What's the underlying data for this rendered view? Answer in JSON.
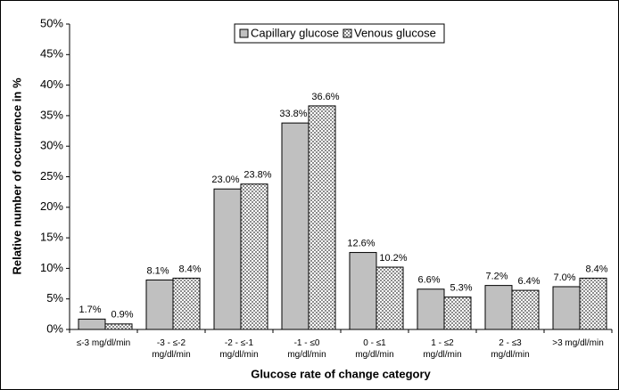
{
  "chart_data": {
    "type": "bar",
    "x_label": "Glucose rate of change category",
    "y_label": "Relative number of occurrence in %",
    "categories": [
      "≤-3 mg/dl/min",
      "-3 - ≤-2\nmg/dl/min",
      "-2 - ≤-1\nmg/dl/min",
      "-1 - ≤0\nmg/dl/min",
      "0 - ≤1\nmg/dl/min",
      "1 - ≤2\nmg/dl/min",
      "2 - ≤3\nmg/dl/min",
      ">3 mg/dl/min"
    ],
    "series": [
      {
        "name": "Capillary glucose",
        "color": "#c0c0c0",
        "values": [
          1.7,
          8.1,
          23.0,
          33.8,
          12.6,
          6.6,
          7.2,
          7.0
        ],
        "value_labels": [
          "1.7%",
          "8.1%",
          "23.0%",
          "33.8%",
          "12.6%",
          "6.6%",
          "7.2%",
          "7.0%"
        ]
      },
      {
        "name": "Venous glucose",
        "color": "#8c8c8c",
        "values": [
          0.9,
          8.4,
          23.8,
          36.6,
          10.2,
          5.3,
          6.4,
          8.4
        ],
        "value_labels": [
          "0.9%",
          "8.4%",
          "23.8%",
          "36.6%",
          "10.2%",
          "5.3%",
          "6.4%",
          "8.4%"
        ]
      }
    ],
    "ylim": [
      0,
      50
    ],
    "yticks": [
      {
        "value": 0,
        "label": "0%"
      },
      {
        "value": 5,
        "label": "5%"
      },
      {
        "value": 10,
        "label": "10%"
      },
      {
        "value": 15,
        "label": "15%"
      },
      {
        "value": 20,
        "label": "20%"
      },
      {
        "value": 25,
        "label": "25%"
      },
      {
        "value": 30,
        "label": "30%"
      },
      {
        "value": 35,
        "label": "35%"
      },
      {
        "value": 40,
        "label": "40%"
      },
      {
        "value": 45,
        "label": "45%"
      },
      {
        "value": 50,
        "label": "50%"
      }
    ],
    "legend": "top"
  }
}
